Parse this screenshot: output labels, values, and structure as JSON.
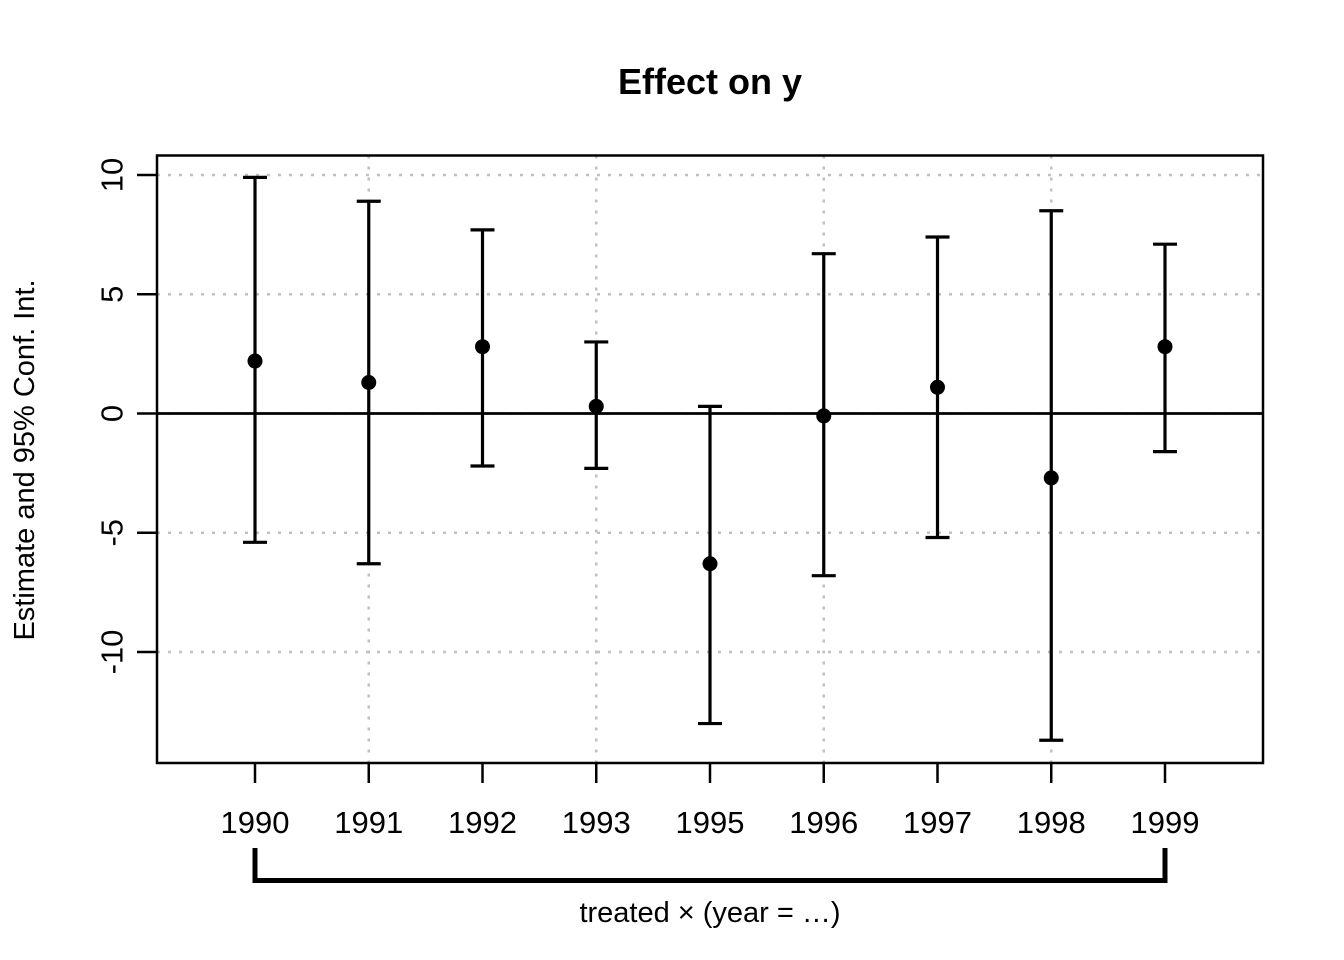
{
  "chart_data": {
    "type": "scatter",
    "title": "Effect on y",
    "xlabel": "treated × (year = …)",
    "ylabel": "Estimate and 95% Conf. Int.",
    "categories": [
      "1990",
      "1991",
      "1992",
      "1993",
      "1995",
      "1996",
      "1997",
      "1998",
      "1999"
    ],
    "series": [
      {
        "name": "estimate",
        "values": [
          2.2,
          1.3,
          2.8,
          0.3,
          -6.3,
          -0.1,
          1.1,
          -2.7,
          2.8
        ]
      },
      {
        "name": "ci_lower",
        "values": [
          -5.4,
          -6.3,
          -2.2,
          -2.3,
          -13.0,
          -6.8,
          -5.2,
          -13.7,
          -1.6
        ]
      },
      {
        "name": "ci_upper",
        "values": [
          9.9,
          8.9,
          7.7,
          3.0,
          0.3,
          6.7,
          7.4,
          8.5,
          7.1
        ]
      }
    ],
    "yticks": [
      10,
      5,
      0,
      -5,
      -10
    ],
    "ylim": [
      -14.6,
      10.8
    ],
    "reference_line_y": 0,
    "grid": true,
    "x_gridline_years": [
      "1991",
      "1993",
      "1996",
      "1998"
    ],
    "legend_position": "none",
    "marker": "filled-circle",
    "error_bar_caps": true
  },
  "colors": {
    "foreground": "#000000",
    "gridline": "#c0c0c0",
    "background": "#ffffff"
  }
}
